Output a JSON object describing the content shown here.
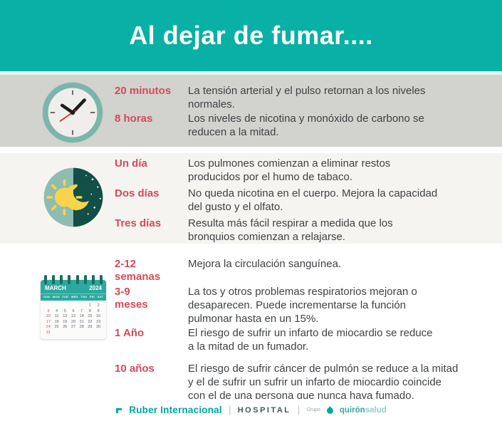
{
  "header": {
    "title": "Al dejar de fumar...."
  },
  "sections": [
    {
      "name": "minutos-horas",
      "icon": "clock-icon",
      "rows": [
        {
          "label": "20 minutos",
          "text": "La tensión arterial y el pulso retornan a los niveles\nnormales."
        },
        {
          "label": "8 horas",
          "text": "Los niveles de nicotina y monóxido de carbono se\nreducen a la mitad."
        }
      ]
    },
    {
      "name": "dias",
      "icon": "day-night-icon",
      "rows": [
        {
          "label": "Un día",
          "text": "Los pulmones comienzan a eliminar restos\nproducidos por el humo de tabaco."
        },
        {
          "label": "Dos días",
          "text": "No queda nicotina en el cuerpo. Mejora la capacidad\ndel gusto y el olfato."
        },
        {
          "label": "Tres días",
          "text": "Resulta más fácil respirar a medida que los\nbronquios comienzan a relajarse."
        }
      ]
    },
    {
      "name": "semanas-meses-anios",
      "icon": "calendar-icon",
      "rows": [
        {
          "label": "2-12\nsemanas",
          "text": "Mejora la circulación sanguínea."
        },
        {
          "label": "3-9\nmeses",
          "text": "La tos y otros problemas respiratorios mejoran o\ndesaparecen. Puede incrementarse la función\npulmonar hasta en un 15%."
        },
        {
          "label": "1 Año",
          "text": "El riesgo de sufrir un infarto de miocardio se reduce\na la mitad de un fumador."
        },
        {
          "label": "10 años",
          "text": "El riesgo de sufrir cáncer de pulmón se reduce a la mitad\ny el de sufrir un sufrir un infarto de miocardio coincide\ncon el de una persona que nunca haya fumado."
        }
      ]
    }
  ],
  "calendar": {
    "month": "MARCH",
    "year": "2024",
    "day_headers": [
      "SUN",
      "MON",
      "TUE",
      "WED",
      "THU",
      "FRI",
      "SAT"
    ],
    "weeks": [
      [
        "",
        "",
        "",
        "",
        "",
        "1",
        "2"
      ],
      [
        "3",
        "4",
        "5",
        "6",
        "7",
        "8",
        "9"
      ],
      [
        "10",
        "11",
        "12",
        "13",
        "14",
        "15",
        "16"
      ],
      [
        "17",
        "18",
        "19",
        "20",
        "21",
        "22",
        "23"
      ],
      [
        "24",
        "25",
        "26",
        "27",
        "28",
        "29",
        "30"
      ],
      [
        "31",
        "",
        "",
        "",
        "",
        "",
        ""
      ]
    ]
  },
  "footer": {
    "ruber": "Ruber Internacional",
    "hospital": "HOSPITAL",
    "grupo": "Grupo",
    "quiron": "quirón",
    "salud": "salud",
    "separator": "|"
  },
  "colors": {
    "header_teal": "#08b0a6",
    "label_red": "#d34a5b",
    "body_text": "#3f4245",
    "section1_bg": "#d2d2cf",
    "section2_bg": "#f6f4f1",
    "brand_teal": "#00a79b",
    "calendar_teal": "#2ca99e",
    "night_teal": "#124f46",
    "day_teal": "#8fbcb1",
    "sun_yellow": "#f7d44c"
  }
}
